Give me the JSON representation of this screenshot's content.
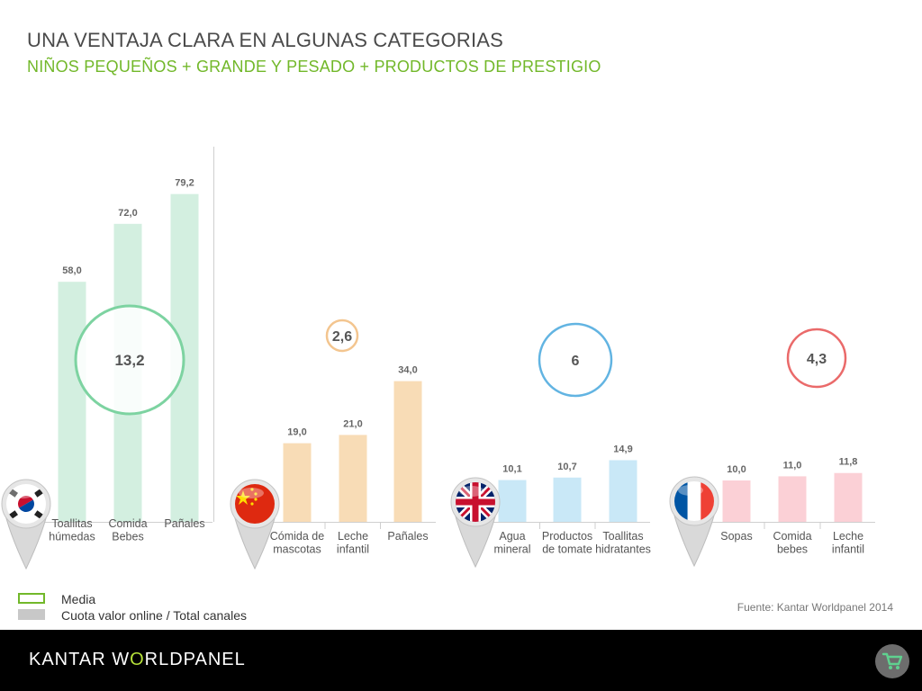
{
  "header": {
    "title": "UNA VENTAJA CLARA EN ALGUNAS CATEGORIAS",
    "subtitle": "NIÑOS PEQUEÑOS + GRANDE Y PESADO + PRODUCTOS DE PRESTIGIO"
  },
  "chart_data": [
    {
      "type": "bar",
      "country_icon": "south-korea-flag-pin-icon",
      "categories": [
        "Toallitas húmedas",
        "Comida Bebes",
        "Pañales"
      ],
      "values": [
        58.0,
        72.0,
        79.2
      ],
      "value_labels": [
        "58,0",
        "72,0",
        "79,2"
      ],
      "media_label": "13,2",
      "bar_color": "#d3efe0",
      "circle_color": "#7dd3a1",
      "ylim": [
        0,
        100
      ]
    },
    {
      "type": "bar",
      "country_icon": "china-flag-pin-icon",
      "categories": [
        "Cómida de mascotas",
        "Leche infantil",
        "Pañales"
      ],
      "values": [
        19.0,
        21.0,
        34.0
      ],
      "value_labels": [
        "19,0",
        "21,0",
        "34,0"
      ],
      "media_label": "2,6",
      "bar_color": "#f8dcb6",
      "circle_color": "#f3c58f",
      "ylim": [
        0,
        100
      ]
    },
    {
      "type": "bar",
      "country_icon": "united-kingdom-flag-pin-icon",
      "categories": [
        "Agua mineral",
        "Productos de tomate",
        "Toallitas hidratantes"
      ],
      "values": [
        10.1,
        10.7,
        14.9
      ],
      "value_labels": [
        "10,1",
        "10,7",
        "14,9"
      ],
      "media_label": "6",
      "bar_color": "#c9e8f7",
      "circle_color": "#62b4e2",
      "ylim": [
        0,
        100
      ]
    },
    {
      "type": "bar",
      "country_icon": "france-flag-pin-icon",
      "categories": [
        "Sopas",
        "Comida bebes",
        "Leche infantil"
      ],
      "values": [
        10.0,
        11.0,
        11.8
      ],
      "value_labels": [
        "10,0",
        "11,0",
        "11,8"
      ],
      "media_label": "4,3",
      "bar_color": "#fbd0d6",
      "circle_color": "#ea6a6a",
      "ylim": [
        0,
        100
      ]
    }
  ],
  "legend": {
    "media": "Media",
    "share": "Cuota valor online / Total canales",
    "media_color": "#72b82a",
    "share_color": "#c8c8c8"
  },
  "source": "Fuente: Kantar Worldpanel 2014",
  "footer": {
    "brand_part1": "KANTAR W",
    "brand_part2": "O",
    "brand_part3": "RLDPANEL",
    "cart_icon": "shopping-cart-icon",
    "bg_color": "#000000"
  }
}
